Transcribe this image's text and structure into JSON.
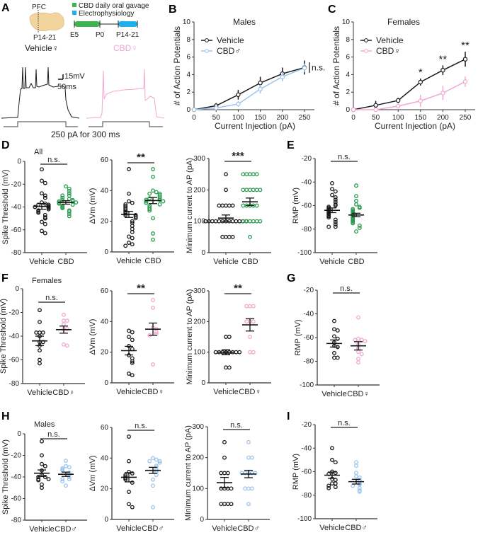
{
  "colors": {
    "vehicle": "#1a1a1a",
    "cbd": "#2a9a4f",
    "cbd_female": "#f0a8d0",
    "cbd_male": "#9cc4ec",
    "brain": "#f2d49c",
    "gavage": "#3fb34f",
    "ephys": "#1fb0ec",
    "stim": "#666666"
  },
  "panel_a": {
    "letter": "A",
    "region": "PFC",
    "age": "P14-21",
    "legend": [
      {
        "label": "CBD daily oral gavage",
        "color": "#3fb34f"
      },
      {
        "label": "Electrophysiology",
        "color": "#1fb0ec"
      }
    ],
    "timeline": [
      "E5",
      "P0",
      "P14-21"
    ],
    "trace_vehicle_label": "Vehicle♀",
    "trace_cbd_label": "CBD♀",
    "scale_v": "15mV",
    "scale_t": "50ms",
    "stim_label": "250 pA for 300 ms"
  },
  "chart_data": [
    {
      "id": "B",
      "type": "line",
      "letter": "B",
      "title": "Males",
      "xlabel": "Current Injection (pA)",
      "ylabel": "# of Action Potentials",
      "x": [
        0,
        50,
        100,
        150,
        200,
        250
      ],
      "xlim": [
        0,
        250
      ],
      "ylim": [
        0,
        10
      ],
      "yticks": [
        0,
        2,
        4,
        6,
        8,
        10
      ],
      "xticks": [
        0,
        50,
        100,
        150,
        200,
        250
      ],
      "series": [
        {
          "name": "Vehicle",
          "color": "#1a1a1a",
          "values": [
            0,
            0.45,
            1.7,
            3.05,
            4.1,
            4.8
          ],
          "err": [
            0,
            0.3,
            0.55,
            0.7,
            0.7,
            0.8
          ]
        },
        {
          "name": "CBD♂",
          "color": "#9cc4ec",
          "values": [
            0,
            0.2,
            0.65,
            2.35,
            3.75,
            4.75
          ],
          "err": [
            0,
            0.1,
            0.3,
            0.5,
            0.5,
            0.5
          ]
        }
      ],
      "annotations": [
        {
          "x": 250,
          "text": "n.s."
        }
      ],
      "legend": "top-left"
    },
    {
      "id": "C",
      "type": "line",
      "letter": "C",
      "title": "Females",
      "xlabel": "Current Injection (pA)",
      "ylabel": "# of Action Potentials",
      "x": [
        0,
        50,
        100,
        150,
        200,
        250
      ],
      "xlim": [
        0,
        250
      ],
      "ylim": [
        0,
        10
      ],
      "yticks": [
        0,
        2,
        4,
        6,
        8,
        10
      ],
      "xticks": [
        0,
        50,
        100,
        150,
        200,
        250
      ],
      "series": [
        {
          "name": "Vehicle",
          "color": "#1a1a1a",
          "values": [
            0,
            0.5,
            1.05,
            3.15,
            4.5,
            5.75
          ],
          "err": [
            0,
            0.5,
            0.3,
            0.4,
            0.55,
            0.85
          ]
        },
        {
          "name": "CBD♀",
          "color": "#f0a8d0",
          "values": [
            0,
            0,
            0.4,
            1.0,
            1.9,
            3.2
          ],
          "err": [
            0,
            0,
            0.2,
            0.7,
            0.8,
            0.6
          ]
        }
      ],
      "annotations": [
        {
          "x": 150,
          "text": "*"
        },
        {
          "x": 200,
          "text": "**"
        },
        {
          "x": 250,
          "text": "**"
        }
      ],
      "legend": "top-left"
    },
    {
      "id": "D1",
      "type": "scatter",
      "letter": "D",
      "subtitle": "All",
      "ylabel": "Spike Threshold (mV)",
      "ylim": [
        -80,
        0
      ],
      "yticks": [
        0,
        -20,
        -40,
        -60,
        -80
      ],
      "sig": "n.s.",
      "groups": [
        {
          "label": "Vehicle",
          "color": "#1a1a1a",
          "mean": -39.5,
          "sem": 2.5,
          "values": [
            -7,
            -17,
            -19,
            -28,
            -30,
            -32,
            -36,
            -37,
            -38,
            -38,
            -39,
            -40,
            -40,
            -41,
            -42,
            -43,
            -44,
            -45,
            -47,
            -49,
            -50,
            -53,
            -55,
            -61,
            -63
          ]
        },
        {
          "label": "CBD",
          "color": "#2a9a4f",
          "mean": -36,
          "sem": 1.5,
          "values": [
            -22,
            -24,
            -26,
            -28,
            -30,
            -30,
            -32,
            -33,
            -34,
            -34,
            -35,
            -35,
            -36,
            -36,
            -37,
            -38,
            -39,
            -40,
            -41,
            -43,
            -44,
            -46,
            -48
          ]
        }
      ]
    },
    {
      "id": "D2",
      "type": "scatter",
      "ylabel": "ΔVm (mV)",
      "ylim": [
        0,
        60
      ],
      "yticks": [
        0,
        20,
        40,
        60
      ],
      "sig": "**",
      "groups": [
        {
          "label": "Vehicle",
          "color": "#1a1a1a",
          "mean": 24.5,
          "sem": 2,
          "values": [
            54,
            38,
            33,
            32,
            31,
            30,
            29,
            28,
            27,
            26,
            25,
            24,
            24,
            23,
            22,
            20,
            19,
            17,
            15,
            13,
            10,
            9,
            6,
            5,
            4
          ]
        },
        {
          "label": "CBD",
          "color": "#2a9a4f",
          "mean": 33.5,
          "sem": 2,
          "values": [
            54,
            49,
            40,
            39,
            38,
            38,
            37,
            36,
            35,
            35,
            34,
            34,
            33,
            33,
            32,
            31,
            30,
            29,
            28,
            27,
            22,
            12,
            8
          ]
        }
      ]
    },
    {
      "id": "D3",
      "type": "scatter",
      "ylabel": "Minimum current to AP (pA)",
      "ylim": [
        0,
        300
      ],
      "yticks": [
        0,
        100,
        200,
        300
      ],
      "sig": "***",
      "groups": [
        {
          "label": "Vehicle",
          "color": "#1a1a1a",
          "mean": 110,
          "sem": 10,
          "values": [
            250,
            200,
            150,
            150,
            150,
            150,
            150,
            100,
            100,
            100,
            100,
            100,
            100,
            100,
            100,
            100,
            100,
            100,
            100,
            100,
            50,
            50,
            50,
            50
          ]
        },
        {
          "label": "CBD",
          "color": "#2a9a4f",
          "mean": 162,
          "sem": 12,
          "values": [
            250,
            250,
            250,
            250,
            250,
            200,
            200,
            200,
            200,
            200,
            200,
            150,
            150,
            150,
            150,
            150,
            100,
            100,
            100,
            100,
            100,
            100,
            50
          ]
        }
      ]
    },
    {
      "id": "E",
      "type": "scatter",
      "letter": "E",
      "ylabel": "RMP (mV)",
      "ylim": [
        -100,
        -20
      ],
      "yticks": [
        -20,
        -40,
        -60,
        -80,
        -100
      ],
      "sig": "n.s.",
      "groups": [
        {
          "label": "Vehicle",
          "color": "#1a1a1a",
          "mean": -64,
          "sem": 2,
          "values": [
            -41,
            -46,
            -48,
            -51,
            -53,
            -55,
            -57,
            -59,
            -60,
            -61,
            -62,
            -63,
            -64,
            -65,
            -66,
            -67,
            -68,
            -69,
            -70,
            -72,
            -74,
            -76,
            -78,
            -78
          ]
        },
        {
          "label": "CBD",
          "color": "#2a9a4f",
          "mean": -68,
          "sem": 1.5,
          "values": [
            -43,
            -52,
            -56,
            -59,
            -61,
            -62,
            -63,
            -64,
            -65,
            -66,
            -67,
            -68,
            -69,
            -70,
            -71,
            -72,
            -73,
            -74,
            -75,
            -77,
            -79,
            -82
          ]
        }
      ]
    },
    {
      "id": "F1",
      "type": "scatter",
      "letter": "F",
      "subtitle": "Females",
      "ylabel": "Spike Threshold (mV)",
      "ylim": [
        -80,
        0
      ],
      "yticks": [
        0,
        -20,
        -40,
        -60,
        -80
      ],
      "sig": "n.s.",
      "groups": [
        {
          "label": "Vehicle",
          "color": "#1a1a1a",
          "mean": -44,
          "sem": 4,
          "values": [
            -18,
            -28,
            -37,
            -37,
            -37,
            -40,
            -45,
            -45,
            -48,
            -52,
            -60,
            -63
          ]
        },
        {
          "label": "CBD♀",
          "color": "#f0a8d0",
          "mean": -34.5,
          "sem": 3,
          "values": [
            -22,
            -27,
            -27,
            -30,
            -34,
            -34,
            -47,
            -48
          ]
        }
      ]
    },
    {
      "id": "F2",
      "type": "scatter",
      "ylabel": "ΔVm (mV)",
      "ylim": [
        0,
        60
      ],
      "yticks": [
        0,
        20,
        40,
        60
      ],
      "sig": "**",
      "groups": [
        {
          "label": "Vehicle",
          "color": "#1a1a1a",
          "mean": 21,
          "sem": 2.8,
          "values": [
            34,
            33,
            30,
            28,
            24,
            22,
            18,
            16,
            14,
            13,
            6,
            5
          ]
        },
        {
          "label": "CBD♀",
          "color": "#f0a8d0",
          "mean": 35,
          "sem": 4,
          "values": [
            54,
            49,
            36,
            35,
            33,
            32,
            31,
            12
          ]
        }
      ]
    },
    {
      "id": "F3",
      "type": "scatter",
      "ylabel": "Minimum current to AP (pA)",
      "ylim": [
        0,
        300
      ],
      "yticks": [
        0,
        100,
        200,
        300
      ],
      "sig": "**",
      "groups": [
        {
          "label": "Vehicle",
          "color": "#1a1a1a",
          "mean": 100,
          "sem": 8,
          "values": [
            150,
            150,
            100,
            100,
            100,
            100,
            100,
            100,
            100,
            100,
            50,
            50
          ]
        },
        {
          "label": "CBD♀",
          "color": "#f0a8d0",
          "mean": 189,
          "sem": 20,
          "values": [
            250,
            250,
            250,
            200,
            200,
            200,
            150,
            100,
            100
          ]
        }
      ]
    },
    {
      "id": "G",
      "type": "scatter",
      "letter": "G",
      "ylabel": "RMP (mV)",
      "ylim": [
        -100,
        -20
      ],
      "yticks": [
        -20,
        -40,
        -60,
        -80,
        -100
      ],
      "sig": "n.s.",
      "groups": [
        {
          "label": "Vehicle",
          "color": "#1a1a1a",
          "mean": -65,
          "sem": 3,
          "values": [
            -46,
            -53,
            -54,
            -59,
            -61,
            -64,
            -67,
            -68,
            -73,
            -77,
            -77
          ]
        },
        {
          "label": "CBD♀",
          "color": "#f0a8d0",
          "mean": -67,
          "sem": 3.5,
          "values": [
            -43,
            -61,
            -62,
            -62,
            -63,
            -66,
            -69,
            -72,
            -74,
            -78,
            -81
          ]
        }
      ]
    },
    {
      "id": "H1",
      "type": "scatter",
      "letter": "H",
      "subtitle": "Males",
      "ylabel": "Spike Threshold (mV)",
      "ylim": [
        -80,
        0
      ],
      "yticks": [
        0,
        -20,
        -40,
        -60,
        -80
      ],
      "sig": "n.s.",
      "groups": [
        {
          "label": "Vehicle",
          "color": "#1a1a1a",
          "mean": -36.5,
          "sem": 3,
          "values": [
            -7,
            -20,
            -28,
            -30,
            -34,
            -38,
            -40,
            -40,
            -42,
            -42,
            -43,
            -47,
            -50
          ]
        },
        {
          "label": "CBD♂",
          "color": "#9cc4ec",
          "mean": -37.5,
          "sem": 2,
          "values": [
            -25,
            -30,
            -31,
            -32,
            -33,
            -34,
            -36,
            -38,
            -40,
            -42,
            -42,
            -44,
            -48
          ]
        }
      ]
    },
    {
      "id": "H2",
      "type": "scatter",
      "ylabel": "ΔVm (mV)",
      "ylim": [
        0,
        60
      ],
      "yticks": [
        0,
        20,
        40,
        60
      ],
      "sig": "n.s.",
      "groups": [
        {
          "label": "Vehicle",
          "color": "#1a1a1a",
          "mean": 27.5,
          "sem": 3,
          "values": [
            54,
            38,
            31,
            30,
            29,
            28,
            27,
            26,
            24,
            18,
            10,
            8
          ]
        },
        {
          "label": "CBD♂",
          "color": "#9cc4ec",
          "mean": 32,
          "sem": 2,
          "values": [
            40,
            39,
            38,
            38,
            37,
            35,
            34,
            32,
            31,
            29,
            26,
            22,
            8
          ]
        }
      ]
    },
    {
      "id": "H3",
      "type": "scatter",
      "ylabel": "Minimum current to AP (pA)",
      "ylim": [
        0,
        300
      ],
      "yticks": [
        0,
        100,
        200,
        300
      ],
      "sig": "n.s.",
      "groups": [
        {
          "label": "Vehicle",
          "color": "#1a1a1a",
          "mean": 119,
          "sem": 17,
          "values": [
            250,
            200,
            150,
            150,
            150,
            100,
            100,
            100,
            100,
            50,
            50,
            50,
            50
          ]
        },
        {
          "label": "CBD♂",
          "color": "#9cc4ec",
          "mean": 147,
          "sem": 12,
          "values": [
            250,
            200,
            200,
            150,
            150,
            150,
            150,
            150,
            100,
            100,
            100,
            50
          ]
        }
      ]
    },
    {
      "id": "I",
      "type": "scatter",
      "letter": "I",
      "ylabel": "RMP (mV)",
      "ylim": [
        -100,
        -20
      ],
      "yticks": [
        -20,
        -40,
        -60,
        -80,
        -100
      ],
      "sig": "n.s.",
      "groups": [
        {
          "label": "Vehicle",
          "color": "#1a1a1a",
          "mean": -63,
          "sem": 2.7,
          "values": [
            -40,
            -50,
            -52,
            -60,
            -61,
            -62,
            -66,
            -67,
            -70,
            -70,
            -72,
            -73,
            -74
          ]
        },
        {
          "label": "CBD♂",
          "color": "#9cc4ec",
          "mean": -68.5,
          "sem": 2,
          "values": [
            -52,
            -55,
            -61,
            -64,
            -65,
            -67,
            -68,
            -70,
            -71,
            -72,
            -74,
            -76,
            -77
          ]
        }
      ]
    }
  ]
}
